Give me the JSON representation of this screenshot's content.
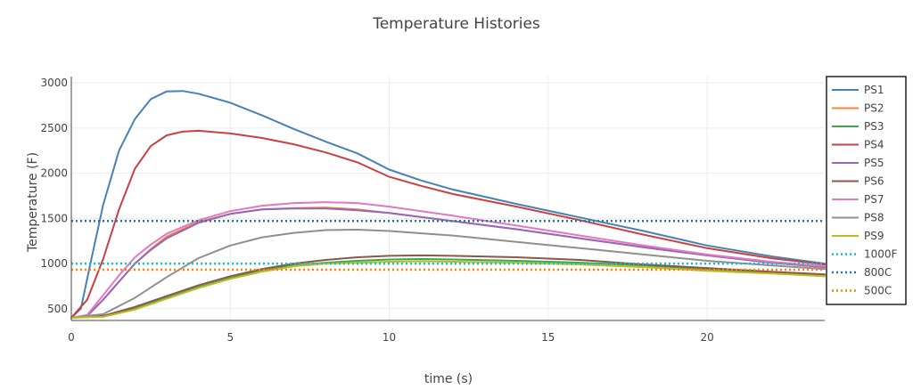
{
  "chart_data": {
    "type": "line",
    "title": "Temperature Histories",
    "xlabel": "time (s)",
    "ylabel": "Temperature (F)",
    "xlim": [
      0,
      23.7
    ],
    "ylim": [
      370,
      3070
    ],
    "xticks": [
      "0",
      "5",
      "10",
      "15",
      "20"
    ],
    "xtick_values": [
      0,
      5,
      10,
      15,
      20
    ],
    "yticks": [
      "500",
      "1000",
      "1500",
      "2000",
      "2500",
      "3000"
    ],
    "ytick_values": [
      500,
      1000,
      1500,
      2000,
      2500,
      3000
    ],
    "grid": true,
    "legend_position": "top-right",
    "series": [
      {
        "name": "PS1",
        "color": "#4682b4",
        "style": "solid",
        "points": [
          [
            0,
            400
          ],
          [
            0.3,
            500
          ],
          [
            0.6,
            1000
          ],
          [
            1,
            1650
          ],
          [
            1.5,
            2250
          ],
          [
            2,
            2600
          ],
          [
            2.5,
            2820
          ],
          [
            3,
            2905
          ],
          [
            3.5,
            2910
          ],
          [
            4,
            2880
          ],
          [
            5,
            2780
          ],
          [
            6,
            2640
          ],
          [
            7,
            2490
          ],
          [
            8,
            2350
          ],
          [
            9,
            2220
          ],
          [
            10,
            2040
          ],
          [
            11,
            1920
          ],
          [
            12,
            1820
          ],
          [
            14,
            1660
          ],
          [
            16,
            1510
          ],
          [
            18,
            1360
          ],
          [
            20,
            1200
          ],
          [
            22,
            1080
          ],
          [
            23.7,
            1000
          ]
        ]
      },
      {
        "name": "PS2",
        "color": "#f0883a",
        "style": "solid",
        "points": [
          [
            0,
            400
          ],
          [
            0.5,
            420
          ],
          [
            1,
            600
          ],
          [
            1.5,
            800
          ],
          [
            2,
            1000
          ],
          [
            2.5,
            1160
          ],
          [
            3,
            1300
          ],
          [
            4,
            1460
          ],
          [
            5,
            1550
          ],
          [
            6,
            1600
          ],
          [
            7,
            1615
          ],
          [
            8,
            1620
          ],
          [
            9,
            1600
          ],
          [
            10,
            1560
          ],
          [
            12,
            1470
          ],
          [
            14,
            1380
          ],
          [
            16,
            1280
          ],
          [
            18,
            1180
          ],
          [
            20,
            1090
          ],
          [
            22,
            1010
          ],
          [
            23.7,
            960
          ]
        ]
      },
      {
        "name": "PS3",
        "color": "#3aa845",
        "style": "solid",
        "points": [
          [
            0,
            400
          ],
          [
            1,
            420
          ],
          [
            2,
            500
          ],
          [
            3,
            620
          ],
          [
            4,
            740
          ],
          [
            5,
            840
          ],
          [
            6,
            930
          ],
          [
            7,
            980
          ],
          [
            8,
            1010
          ],
          [
            9,
            1030
          ],
          [
            10,
            1045
          ],
          [
            11,
            1050
          ],
          [
            12,
            1045
          ],
          [
            14,
            1030
          ],
          [
            16,
            1010
          ],
          [
            18,
            980
          ],
          [
            20,
            940
          ],
          [
            22,
            900
          ],
          [
            23.7,
            860
          ]
        ]
      },
      {
        "name": "PS4",
        "color": "#cc3f3f",
        "style": "solid",
        "points": [
          [
            0,
            400
          ],
          [
            0.5,
            600
          ],
          [
            1,
            1050
          ],
          [
            1.5,
            1600
          ],
          [
            2,
            2050
          ],
          [
            2.5,
            2300
          ],
          [
            3,
            2420
          ],
          [
            3.5,
            2460
          ],
          [
            4,
            2470
          ],
          [
            5,
            2440
          ],
          [
            6,
            2390
          ],
          [
            7,
            2320
          ],
          [
            8,
            2230
          ],
          [
            9,
            2120
          ],
          [
            10,
            1960
          ],
          [
            11,
            1860
          ],
          [
            12,
            1770
          ],
          [
            14,
            1630
          ],
          [
            16,
            1480
          ],
          [
            18,
            1320
          ],
          [
            20,
            1170
          ],
          [
            22,
            1060
          ],
          [
            23.7,
            990
          ]
        ]
      },
      {
        "name": "PS5",
        "color": "#9467bd",
        "style": "solid",
        "points": [
          [
            0,
            400
          ],
          [
            0.5,
            420
          ],
          [
            1,
            600
          ],
          [
            1.5,
            800
          ],
          [
            2,
            1000
          ],
          [
            2.5,
            1150
          ],
          [
            3,
            1280
          ],
          [
            4,
            1450
          ],
          [
            5,
            1550
          ],
          [
            6,
            1600
          ],
          [
            7,
            1610
          ],
          [
            8,
            1610
          ],
          [
            9,
            1590
          ],
          [
            10,
            1560
          ],
          [
            12,
            1470
          ],
          [
            14,
            1380
          ],
          [
            16,
            1280
          ],
          [
            18,
            1180
          ],
          [
            20,
            1090
          ],
          [
            22,
            1010
          ],
          [
            23.7,
            960
          ]
        ]
      },
      {
        "name": "PS6",
        "color": "#8c564b",
        "style": "solid",
        "points": [
          [
            0,
            400
          ],
          [
            1,
            420
          ],
          [
            2,
            520
          ],
          [
            3,
            640
          ],
          [
            4,
            760
          ],
          [
            5,
            860
          ],
          [
            6,
            940
          ],
          [
            7,
            1000
          ],
          [
            8,
            1040
          ],
          [
            9,
            1070
          ],
          [
            10,
            1085
          ],
          [
            11,
            1090
          ],
          [
            12,
            1085
          ],
          [
            14,
            1070
          ],
          [
            16,
            1040
          ],
          [
            18,
            990
          ],
          [
            20,
            950
          ],
          [
            22,
            910
          ],
          [
            23.7,
            880
          ]
        ]
      },
      {
        "name": "PS7",
        "color": "#e377c2",
        "style": "solid",
        "points": [
          [
            0,
            400
          ],
          [
            0.5,
            430
          ],
          [
            1,
            650
          ],
          [
            1.5,
            870
          ],
          [
            2,
            1070
          ],
          [
            2.5,
            1210
          ],
          [
            3,
            1330
          ],
          [
            4,
            1480
          ],
          [
            5,
            1580
          ],
          [
            6,
            1640
          ],
          [
            7,
            1670
          ],
          [
            8,
            1680
          ],
          [
            9,
            1670
          ],
          [
            10,
            1630
          ],
          [
            12,
            1530
          ],
          [
            14,
            1420
          ],
          [
            16,
            1310
          ],
          [
            18,
            1200
          ],
          [
            20,
            1100
          ],
          [
            22,
            1020
          ],
          [
            23.7,
            970
          ]
        ]
      },
      {
        "name": "PS8",
        "color": "#8f8f8f",
        "style": "solid",
        "points": [
          [
            0,
            400
          ],
          [
            1,
            440
          ],
          [
            2,
            620
          ],
          [
            3,
            850
          ],
          [
            4,
            1060
          ],
          [
            5,
            1200
          ],
          [
            6,
            1290
          ],
          [
            7,
            1340
          ],
          [
            8,
            1370
          ],
          [
            9,
            1375
          ],
          [
            10,
            1360
          ],
          [
            12,
            1310
          ],
          [
            14,
            1240
          ],
          [
            16,
            1170
          ],
          [
            18,
            1100
          ],
          [
            20,
            1030
          ],
          [
            22,
            980
          ],
          [
            23.7,
            940
          ]
        ]
      },
      {
        "name": "PS9",
        "color": "#bcbd22",
        "style": "solid",
        "points": [
          [
            0,
            400
          ],
          [
            1,
            410
          ],
          [
            2,
            490
          ],
          [
            3,
            610
          ],
          [
            4,
            730
          ],
          [
            5,
            830
          ],
          [
            6,
            910
          ],
          [
            7,
            970
          ],
          [
            8,
            1000
          ],
          [
            9,
            1010
          ],
          [
            10,
            1020
          ],
          [
            11,
            1025
          ],
          [
            12,
            1020
          ],
          [
            14,
            1010
          ],
          [
            16,
            990
          ],
          [
            18,
            960
          ],
          [
            20,
            920
          ],
          [
            22,
            890
          ],
          [
            23.7,
            860
          ]
        ]
      },
      {
        "name": "1000F",
        "color": "#17becf",
        "style": "dotted",
        "points": [
          [
            0,
            1000
          ],
          [
            23.7,
            1000
          ]
        ]
      },
      {
        "name": "800C",
        "color": "#1f77b4",
        "style": "dotted",
        "points": [
          [
            0,
            1472
          ],
          [
            23.7,
            1472
          ]
        ]
      },
      {
        "name": "500C",
        "color": "#ff7f0e",
        "style": "dotted",
        "points": [
          [
            0,
            932
          ],
          [
            23.7,
            932
          ]
        ]
      }
    ]
  }
}
